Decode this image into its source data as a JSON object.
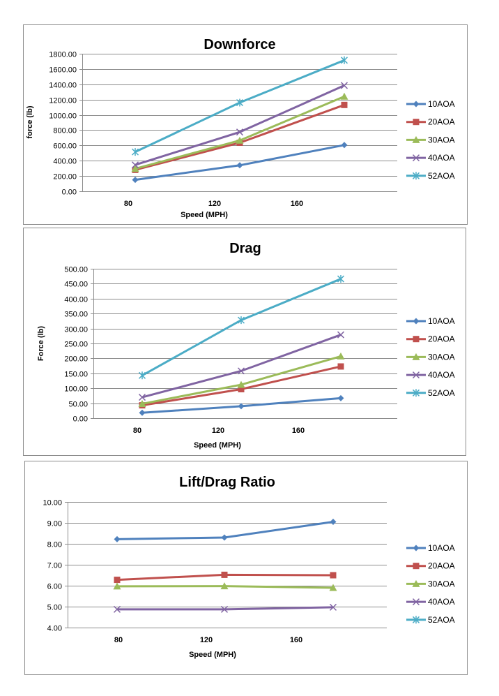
{
  "colors": {
    "10AOA": "#4F81BD",
    "20AOA": "#C0504D",
    "30AOA": "#9BBB59",
    "40AOA": "#8064A2",
    "52AOA": "#4BACC6"
  },
  "markers": {
    "10AOA": "diamond",
    "20AOA": "square",
    "30AOA": "triangle",
    "40AOA": "x",
    "52AOA": "asterisk"
  },
  "chart_data": [
    {
      "type": "line",
      "title": "Downforce",
      "xlabel": "Speed (MPH)",
      "ylabel": "force (lb)",
      "ylim": [
        0,
        1800
      ],
      "yticks": [
        "0.00",
        "200.00",
        "400.00",
        "600.00",
        "800.00",
        "1000.00",
        "1200.00",
        "1400.00",
        "1600.00",
        "1800.00"
      ],
      "xticks": [
        "80",
        "120",
        "160"
      ],
      "grid": "horizontal",
      "legend": "right",
      "series": [
        {
          "name": "10AOA",
          "values": [
            150,
            340,
            605
          ]
        },
        {
          "name": "20AOA",
          "values": [
            280,
            635,
            1130
          ]
        },
        {
          "name": "30AOA",
          "values": [
            295,
            665,
            1240
          ]
        },
        {
          "name": "40AOA",
          "values": [
            345,
            775,
            1385
          ]
        },
        {
          "name": "52AOA",
          "values": [
            515,
            1160,
            1715
          ]
        }
      ]
    },
    {
      "type": "line",
      "title": "Drag",
      "xlabel": "Speed (MPH)",
      "ylabel": "Force (lb)",
      "ylim": [
        0,
        500
      ],
      "yticks": [
        "0.00",
        "50.00",
        "100.00",
        "150.00",
        "200.00",
        "250.00",
        "300.00",
        "350.00",
        "400.00",
        "450.00",
        "500.00"
      ],
      "xticks": [
        "80",
        "120",
        "160"
      ],
      "grid": "horizontal",
      "legend": "right",
      "series": [
        {
          "name": "10AOA",
          "values": [
            18,
            40,
            67
          ]
        },
        {
          "name": "20AOA",
          "values": [
            43,
            97,
            173
          ]
        },
        {
          "name": "30AOA",
          "values": [
            48,
            112,
            207
          ]
        },
        {
          "name": "40AOA",
          "values": [
            70,
            158,
            279
          ]
        },
        {
          "name": "52AOA",
          "values": [
            143,
            328,
            466
          ]
        }
      ]
    },
    {
      "type": "line",
      "title": "Lift/Drag Ratio",
      "xlabel": "Speed (MPH)",
      "ylabel": "",
      "ylim": [
        4,
        10
      ],
      "yticks": [
        "4.00",
        "5.00",
        "6.00",
        "7.00",
        "8.00",
        "9.00",
        "10.00"
      ],
      "xticks": [
        "80",
        "120",
        "160"
      ],
      "grid": "horizontal",
      "legend": "right",
      "series": [
        {
          "name": "10AOA",
          "values": [
            8.22,
            8.3,
            9.05
          ]
        },
        {
          "name": "20AOA",
          "values": [
            6.28,
            6.52,
            6.5
          ]
        },
        {
          "name": "30AOA",
          "values": [
            5.97,
            5.98,
            5.9
          ]
        },
        {
          "name": "40AOA",
          "values": [
            4.87,
            4.87,
            4.97
          ]
        },
        {
          "name": "52AOA",
          "values": []
        }
      ]
    }
  ]
}
